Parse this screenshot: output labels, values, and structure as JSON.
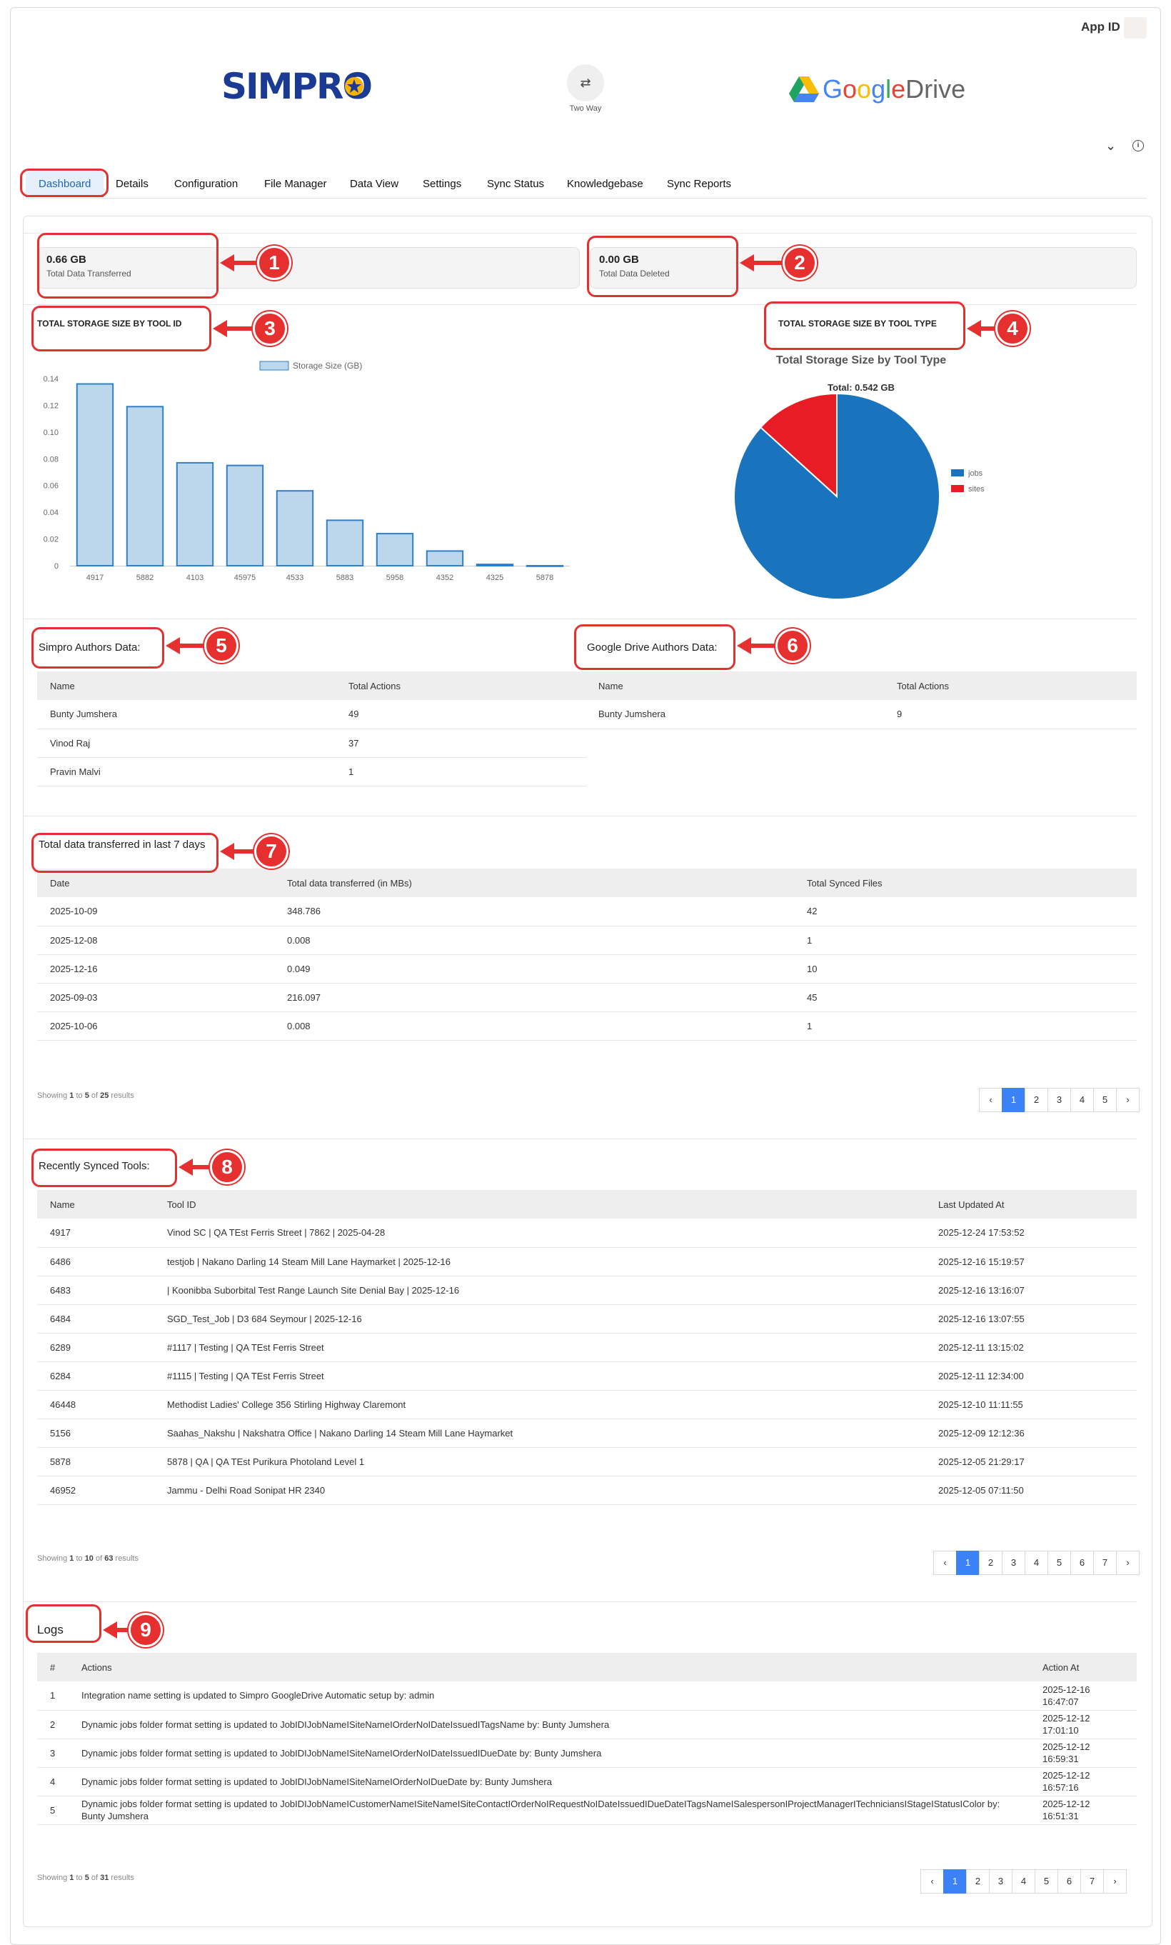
{
  "header": {
    "app_id_label": "App ID :",
    "simpro_logo": "SIMPRO",
    "sync_mode_icon": "⇄",
    "sync_mode_label": "Two Way",
    "gdrive_logo": [
      "G",
      "o",
      "o",
      "g",
      "l",
      "e",
      "Drive"
    ],
    "gdrive_colors": [
      "#4285F4",
      "#EA4335",
      "#FBBC05",
      "#4285F4",
      "#34A853",
      "#EA4335",
      "#666666"
    ]
  },
  "tabs": [
    "Dashboard",
    "Details",
    "Configuration",
    "File Manager",
    "Data View",
    "Settings",
    "Sync Status",
    "Knowledgebase",
    "Sync Reports"
  ],
  "stats": {
    "transferred": {
      "value": "0.66 GB",
      "label": "Total Data Transferred"
    },
    "deleted": {
      "value": "0.00 GB",
      "label": "Total Data Deleted"
    }
  },
  "annotations": [
    "1",
    "2",
    "3",
    "4",
    "5",
    "6",
    "7",
    "8",
    "9"
  ],
  "storage_by_id": {
    "heading": "TOTAL STORAGE SIZE BY TOOL ID",
    "legend": "Storage Size (GB)",
    "yticks": [
      "0.14",
      "0.12",
      "0.10",
      "0.08",
      "0.06",
      "0.04",
      "0.02",
      "0"
    ]
  },
  "storage_by_type": {
    "heading": "TOTAL STORAGE SIZE BY TOOL TYPE",
    "title": "Total Storage Size by Tool Type",
    "total": "Total: 0.542 GB"
  },
  "chart_data": [
    {
      "type": "bar",
      "title": "",
      "categories": [
        "4917",
        "5882",
        "4103",
        "45975",
        "4533",
        "5883",
        "5958",
        "4352",
        "4325",
        "5878"
      ],
      "series": [
        {
          "name": "Storage Size (GB)",
          "values": [
            0.136,
            0.119,
            0.077,
            0.075,
            0.056,
            0.034,
            0.024,
            0.011,
            0.001,
            0.0
          ]
        }
      ],
      "ylim": [
        0,
        0.14
      ],
      "color": "#bcd6ec",
      "border": "#2f7fc9",
      "legend": "top"
    },
    {
      "type": "pie",
      "title": "Total Storage Size by Tool Type",
      "labels": [
        "jobs",
        "sites"
      ],
      "values": [
        0.47,
        0.072
      ],
      "colors": [
        "#1a73bd",
        "#e81c24"
      ],
      "legend": "right"
    }
  ],
  "simpro_authors": {
    "title": "Simpro Authors Data:",
    "columns": [
      "Name",
      "Total Actions"
    ],
    "rows": [
      [
        "Bunty Jumshera",
        "49"
      ],
      [
        "Vinod Raj",
        "37"
      ],
      [
        "Pravin Malvi",
        "1"
      ]
    ]
  },
  "gdrive_authors": {
    "title": "Google Drive Authors Data:",
    "columns": [
      "Name",
      "Total Actions"
    ],
    "rows": [
      [
        "Bunty Jumshera",
        "9"
      ]
    ]
  },
  "transfers": {
    "title": "Total data transferred in last 7 days",
    "columns": [
      "Date",
      "Total data transferred (in MBs)",
      "Total Synced Files"
    ],
    "rows": [
      [
        "2025-10-09",
        "348.786",
        "42"
      ],
      [
        "2025-12-08",
        "0.008",
        "1"
      ],
      [
        "2025-12-16",
        "0.049",
        "10"
      ],
      [
        "2025-09-03",
        "216.097",
        "45"
      ],
      [
        "2025-10-06",
        "0.008",
        "1"
      ]
    ],
    "showing": {
      "pre": "Showing ",
      "from": "1",
      "mid1": " to ",
      "to": "5",
      "mid2": " of ",
      "total": "25",
      "post": " results"
    },
    "pages": [
      "‹",
      "1",
      "2",
      "3",
      "4",
      "5",
      "›"
    ]
  },
  "recent": {
    "title": "Recently Synced Tools:",
    "columns": [
      "Name",
      "Tool ID",
      "Last Updated At"
    ],
    "rows": [
      [
        "4917",
        "Vinod SC | QA TEst Ferris Street | 7862 | 2025-04-28",
        "2025-12-24 17:53:52"
      ],
      [
        "6486",
        "testjob | Nakano Darling 14 Steam Mill Lane Haymarket | 2025-12-16",
        "2025-12-16 15:19:57"
      ],
      [
        "6483",
        "| Koonibba Suborbital Test Range Launch Site Denial Bay | 2025-12-16",
        "2025-12-16 13:16:07"
      ],
      [
        "6484",
        "SGD_Test_Job | D3 684 Seymour | 2025-12-16",
        "2025-12-16 13:07:55"
      ],
      [
        "6289",
        "#1117 | Testing | QA TEst Ferris Street",
        "2025-12-11 13:15:02"
      ],
      [
        "6284",
        "#1115 | Testing | QA TEst Ferris Street",
        "2025-12-11 12:34:00"
      ],
      [
        "46448",
        "Methodist Ladies' College 356 Stirling Highway Claremont",
        "2025-12-10 11:11:55"
      ],
      [
        "5156",
        "Saahas_Nakshu | Nakshatra Office | Nakano Darling 14 Steam Mill Lane Haymarket",
        "2025-12-09 12:12:36"
      ],
      [
        "5878",
        "5878 | QA | QA TEst Purikura Photoland Level 1",
        "2025-12-05 21:29:17"
      ],
      [
        "46952",
        "Jammu - Delhi Road Sonipat HR 2340",
        "2025-12-05 07:11:50"
      ]
    ],
    "showing": {
      "pre": "Showing ",
      "from": "1",
      "mid1": " to ",
      "to": "10",
      "mid2": " of ",
      "total": "63",
      "post": " results"
    },
    "pages": [
      "‹",
      "1",
      "2",
      "3",
      "4",
      "5",
      "6",
      "7",
      "›"
    ]
  },
  "logs": {
    "title": "Logs",
    "columns": [
      "#",
      "Actions",
      "Action At"
    ],
    "rows": [
      [
        "1",
        "Integration name setting is updated to Simpro GoogleDrive Automatic setup by: admin",
        "2025-12-16",
        "16:47:07"
      ],
      [
        "2",
        "Dynamic jobs folder format setting is updated to JobIDIJobNameISiteNameIOrderNoIDateIssuedITagsName by: Bunty Jumshera",
        "2025-12-12",
        "17:01:10"
      ],
      [
        "3",
        "Dynamic jobs folder format setting is updated to JobIDIJobNameISiteNameIOrderNoIDateIssuedIDueDate by: Bunty Jumshera",
        "2025-12-12",
        "16:59:31"
      ],
      [
        "4",
        "Dynamic jobs folder format setting is updated to JobIDIJobNameISiteNameIOrderNoIDueDate by: Bunty Jumshera",
        "2025-12-12",
        "16:57:16"
      ],
      [
        "5",
        "Dynamic jobs folder format setting is updated to JobIDIJobNameICustomerNameISiteNameISiteContactIOrderNoIRequestNoIDateIssuedIDueDateITagsNameISalespersonIProjectManagerITechniciansIStageIStatusIColor by: Bunty Jumshera",
        "2025-12-12",
        "16:51:31"
      ]
    ],
    "showing": {
      "pre": "Showing ",
      "from": "1",
      "mid1": " to ",
      "to": "5",
      "mid2": " of ",
      "total": "31",
      "post": " results"
    },
    "pages": [
      "‹",
      "1",
      "2",
      "3",
      "4",
      "5",
      "6",
      "7",
      "›"
    ]
  }
}
